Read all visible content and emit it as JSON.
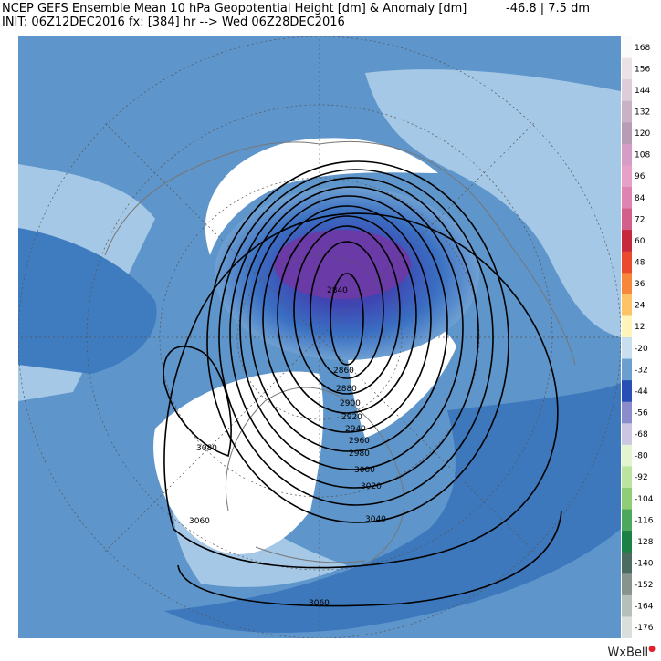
{
  "header": {
    "line1": "NCEP GEFS Ensemble Mean 10 hPa Geopotential Height [dm] & Anomaly [dm]",
    "line2": "INIT: 06Z12DEC2016 fx: [384] hr --> Wed 06Z28DEC2016",
    "range": "-46.8 | 7.5 dm"
  },
  "colorbar": {
    "labels": [
      "168",
      "156",
      "144",
      "132",
      "120",
      "108",
      "96",
      "84",
      "72",
      "60",
      "48",
      "36",
      "24",
      "12",
      "-20",
      "-32",
      "-44",
      "-56",
      "-68",
      "-80",
      "-92",
      "-104",
      "-116",
      "-128",
      "-140",
      "-152",
      "-164",
      "-176"
    ],
    "colors": [
      "#fbfbfb",
      "#ebe2e8",
      "#dccdd8",
      "#c9b2c6",
      "#b89bb5",
      "#d69cc6",
      "#e7a0c8",
      "#df84b0",
      "#d2608a",
      "#c8283c",
      "#ea4b2e",
      "#f7883b",
      "#fcc367",
      "#fff4ba",
      "#c9dff0",
      "#6a9fd0",
      "#284fb4",
      "#8a8ccc",
      "#cdc6e2",
      "#e4f4cf",
      "#bde49f",
      "#8fcd77",
      "#4da75d",
      "#1d8044",
      "#4c6b61",
      "#87948d",
      "#b7bfbb",
      "#dadfdc"
    ]
  },
  "contours": [
    {
      "label": "2840"
    },
    {
      "label": "2860"
    },
    {
      "label": "2880"
    },
    {
      "label": "2900"
    },
    {
      "label": "2920"
    },
    {
      "label": "2940"
    },
    {
      "label": "2960"
    },
    {
      "label": "2980"
    },
    {
      "label": "3000"
    },
    {
      "label": "3020"
    },
    {
      "label": "3040"
    },
    {
      "label": "3060"
    },
    {
      "label": "3080"
    },
    {
      "label": "3060"
    }
  ],
  "brand": "WxBell"
}
